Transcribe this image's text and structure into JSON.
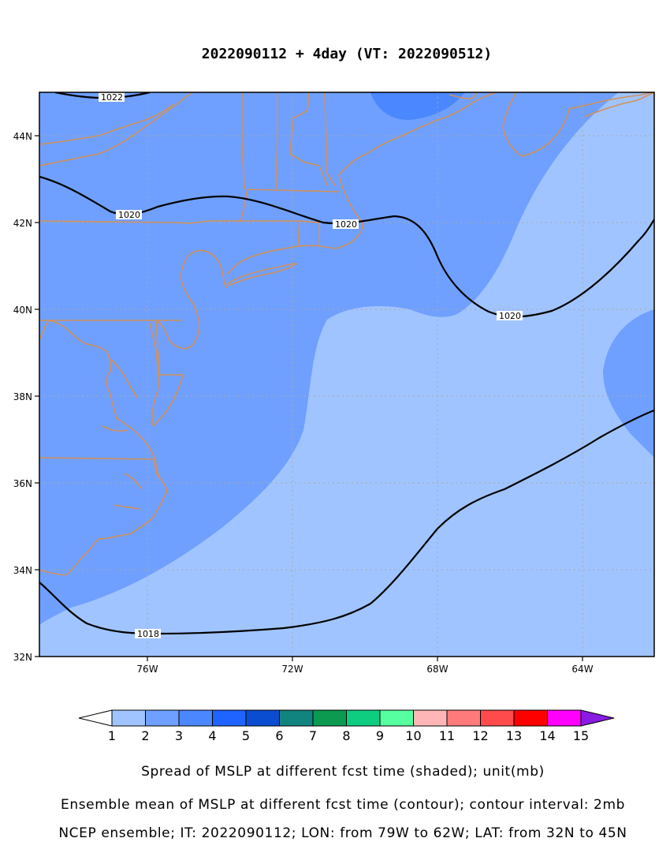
{
  "title": "2022090112 + 4day (VT: 2022090512)",
  "axes": {
    "x_ticks": [
      "76W",
      "72W",
      "68W",
      "64W"
    ],
    "y_ticks": [
      "32N",
      "34N",
      "36N",
      "38N",
      "40N",
      "42N",
      "44N"
    ]
  },
  "contour_labels": [
    "1022",
    "1020",
    "1020",
    "1020",
    "1018"
  ],
  "colorbar": {
    "labels": [
      "1",
      "2",
      "3",
      "4",
      "5",
      "6",
      "7",
      "8",
      "9",
      "10",
      "11",
      "12",
      "13",
      "14",
      "15"
    ],
    "colors": [
      "#a0c4ff",
      "#6fa0ff",
      "#4b87ff",
      "#1f64ff",
      "#0a4dd1",
      "#12847f",
      "#0b9a50",
      "#0fcd80",
      "#56ff9f",
      "#ffb6b6",
      "#ff7b7b",
      "#ff4b4b",
      "#ff0000",
      "#ff00ff",
      "#8a1be2"
    ]
  },
  "shading_colors": {
    "spread_1_2": "#a0c4ff",
    "spread_2_3": "#6fa0ff",
    "spread_3_4": "#4b87ff"
  },
  "coastline_color": "#d2915a",
  "captions": [
    "Spread of MSLP at different fcst time (shaded); unit(mb)",
    "Ensemble mean of MSLP at different fcst time (contour); contour interval: 2mb",
    "NCEP ensemble; IT: 2022090112; LON: from 79W to 62W; LAT: from 32N to 45N"
  ]
}
